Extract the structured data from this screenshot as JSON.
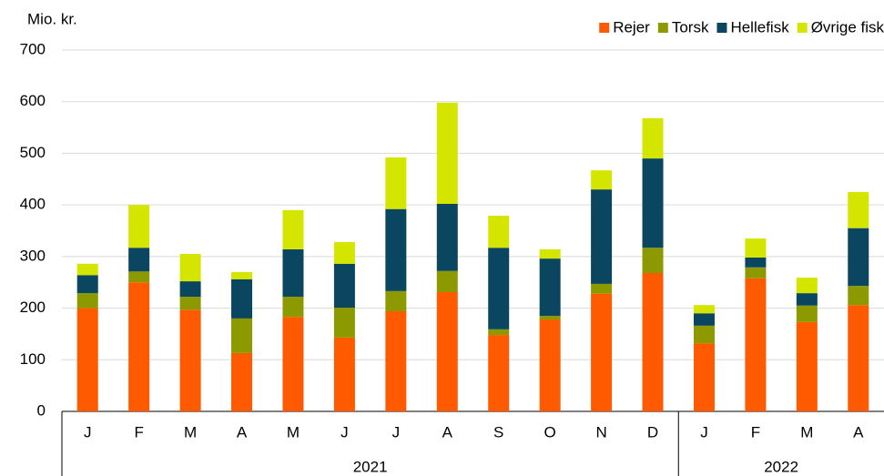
{
  "chart_data": {
    "type": "bar",
    "stacked": true,
    "y_label": "Mio. kr.",
    "groups": [
      {
        "label": "2021",
        "categories": [
          "J",
          "F",
          "M",
          "A",
          "M",
          "J",
          "J",
          "A",
          "S",
          "O",
          "N",
          "D"
        ]
      },
      {
        "label": "2022",
        "categories": [
          "J",
          "F",
          "M",
          "A"
        ]
      }
    ],
    "series": [
      {
        "name": "Rejer",
        "color": "#ff5a00",
        "values": [
          200,
          250,
          197,
          113,
          183,
          143,
          194,
          231,
          148,
          178,
          228,
          268,
          132,
          258,
          173,
          206
        ]
      },
      {
        "name": "Torsk",
        "color": "#8c9a00",
        "values": [
          29,
          21,
          25,
          67,
          39,
          58,
          39,
          41,
          11,
          7,
          19,
          49,
          34,
          21,
          32,
          37
        ]
      },
      {
        "name": "Hellefisk",
        "color": "#0b4660",
        "values": [
          35,
          46,
          30,
          76,
          92,
          85,
          159,
          130,
          158,
          111,
          183,
          173,
          24,
          19,
          24,
          112
        ]
      },
      {
        "name": "Øvrige fisk",
        "color": "#d4e600",
        "values": [
          22,
          83,
          53,
          14,
          76,
          42,
          100,
          196,
          62,
          18,
          37,
          78,
          16,
          37,
          30,
          70
        ]
      }
    ],
    "ylim": [
      0,
      700
    ],
    "yticks": [
      0,
      100,
      200,
      300,
      400,
      500,
      600,
      700
    ],
    "grid": true,
    "legend": "top-right"
  }
}
